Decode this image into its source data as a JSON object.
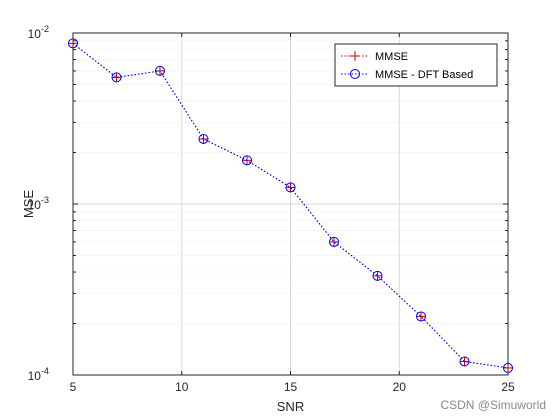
{
  "chart_data": {
    "type": "line",
    "xlabel": "SNR",
    "ylabel": "MSE",
    "xlim": [
      5,
      25
    ],
    "ylim": [
      0.0001,
      0.01
    ],
    "y_scale": "log",
    "x_ticks": [
      5,
      10,
      15,
      20,
      25
    ],
    "x_tick_labels": [
      "5",
      "10",
      "15",
      "20",
      "25"
    ],
    "y_tick_decades": [
      {
        "base": "10",
        "exp": "-4"
      },
      {
        "base": "10",
        "exp": "-3"
      },
      {
        "base": "10",
        "exp": "-2"
      }
    ],
    "grid": true,
    "legend_position": "top-right",
    "x": [
      5,
      7,
      9,
      11,
      13,
      15,
      17,
      19,
      21,
      23,
      25
    ],
    "series": [
      {
        "name": "MMSE",
        "marker": "plus",
        "color": "#cc0000",
        "values": [
          0.0087,
          0.0055,
          0.006,
          0.0024,
          0.0018,
          0.00125,
          0.0006,
          0.00038,
          0.00022,
          0.00012,
          0.00011
        ]
      },
      {
        "name": "MMSE - DFT Based",
        "marker": "circle",
        "color": "#0000ff",
        "values": [
          0.0087,
          0.0055,
          0.006,
          0.0024,
          0.0018,
          0.00125,
          0.0006,
          0.00038,
          0.00022,
          0.00012,
          0.00011
        ]
      }
    ]
  },
  "watermark": "CSDN @Simuworld"
}
